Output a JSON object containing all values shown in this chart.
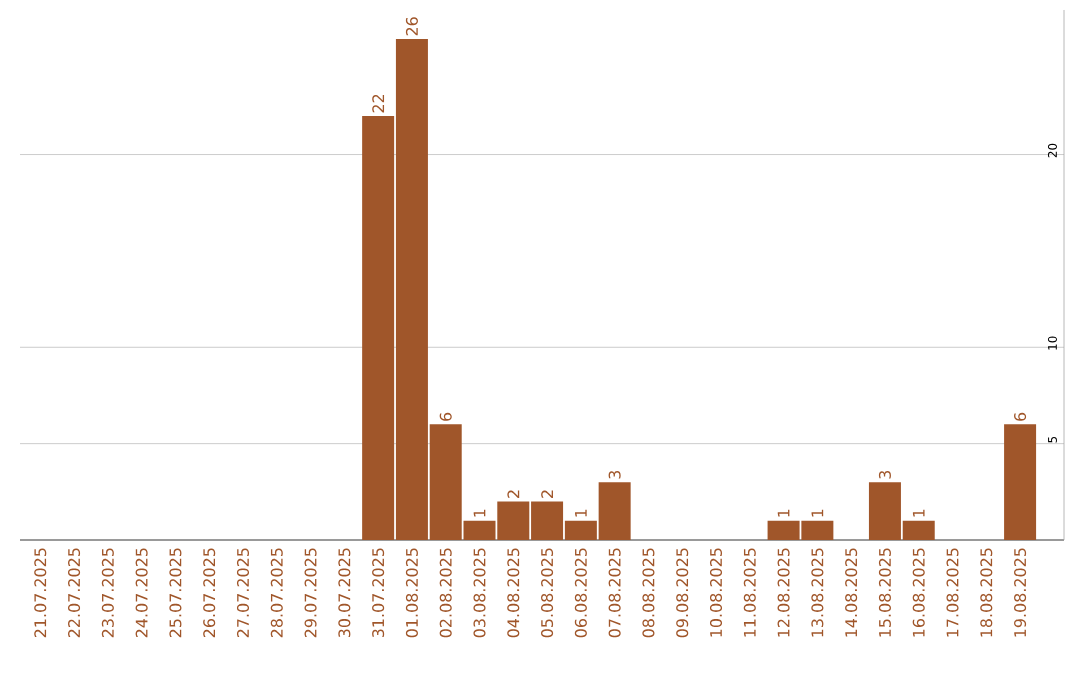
{
  "chart_data": {
    "type": "bar",
    "categories": [
      "21.07.2025",
      "22.07.2025",
      "23.07.2025",
      "24.07.2025",
      "25.07.2025",
      "26.07.2025",
      "27.07.2025",
      "28.07.2025",
      "29.07.2025",
      "30.07.2025",
      "31.07.2025",
      "01.08.2025",
      "02.08.2025",
      "03.08.2025",
      "04.08.2025",
      "05.08.2025",
      "06.08.2025",
      "07.08.2025",
      "08.08.2025",
      "09.08.2025",
      "10.08.2025",
      "11.08.2025",
      "12.08.2025",
      "13.08.2025",
      "14.08.2025",
      "15.08.2025",
      "16.08.2025",
      "17.08.2025",
      "18.08.2025",
      "19.08.2025"
    ],
    "values": [
      0,
      0,
      0,
      0,
      0,
      0,
      0,
      0,
      0,
      0,
      22,
      26,
      6,
      1,
      2,
      2,
      1,
      3,
      0,
      0,
      0,
      0,
      1,
      1,
      0,
      3,
      1,
      0,
      0,
      6
    ],
    "value_labels": [
      null,
      null,
      null,
      null,
      null,
      null,
      null,
      null,
      null,
      null,
      "22",
      "26",
      "6",
      "1",
      "2",
      "2",
      "1",
      "3",
      null,
      null,
      null,
      null,
      "1",
      "1",
      null,
      "3",
      "1",
      null,
      null,
      "6"
    ],
    "color": "#a0562a",
    "ylim": [
      0,
      27.5
    ],
    "yticks": [
      5,
      10,
      20
    ],
    "grid": "y"
  }
}
